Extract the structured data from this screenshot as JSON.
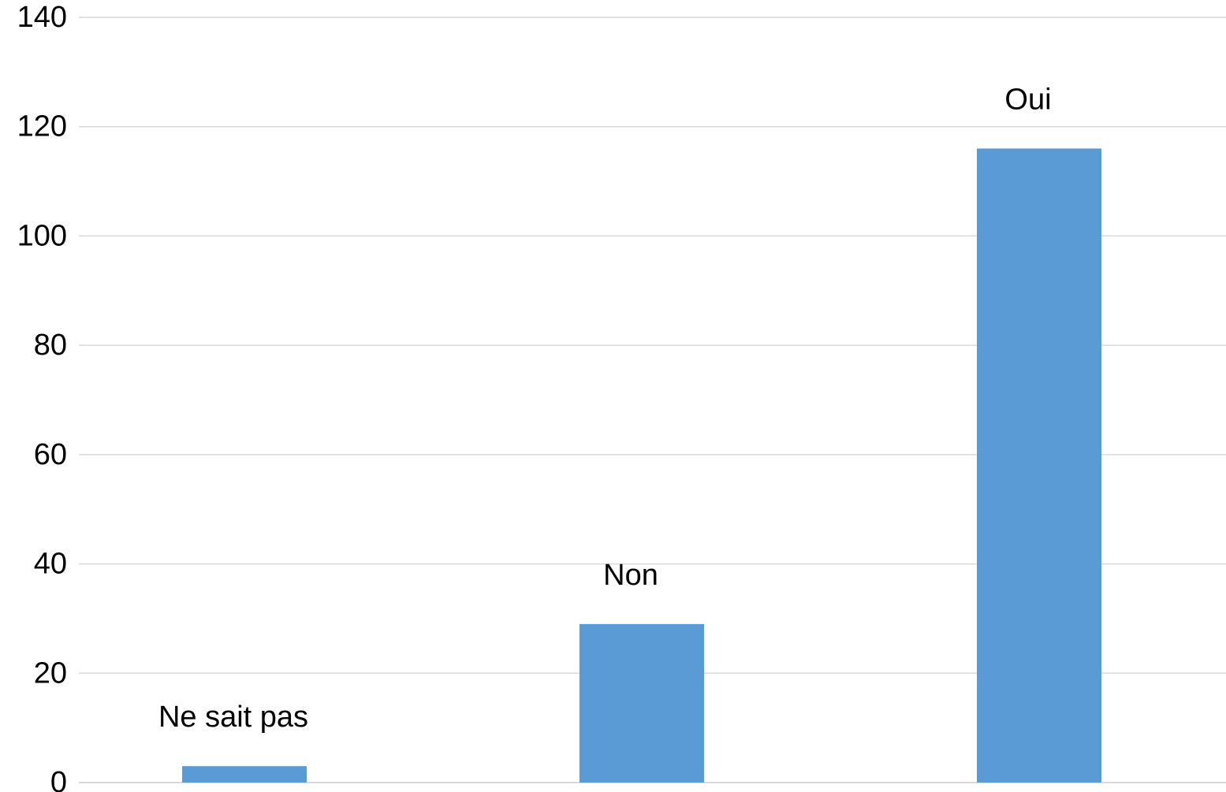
{
  "chart_data": {
    "type": "bar",
    "categories": [
      "Ne sait pas",
      "Non",
      "Oui"
    ],
    "values": [
      3,
      29,
      116
    ],
    "title": "",
    "xlabel": "",
    "ylabel": "",
    "ylim": [
      0,
      140
    ],
    "yticks": [
      0,
      20,
      40,
      60,
      80,
      100,
      120,
      140
    ],
    "grid": true,
    "legend": "none",
    "bar_color": "#5b9bd5",
    "category_label_position": "above-bar"
  }
}
